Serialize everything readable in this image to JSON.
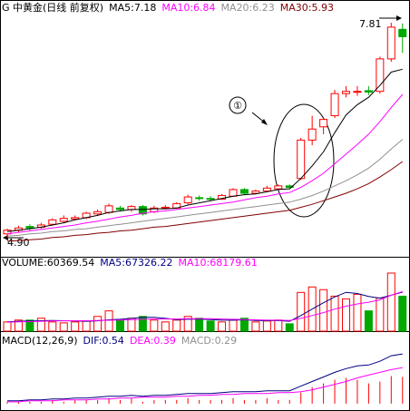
{
  "chart_data": [
    {
      "type": "candlestick",
      "title": "G 中黄金(日线 前复权)",
      "up_color": "#ff0000",
      "down_color": "#00a800",
      "open": [
        4.95,
        5.0,
        5.05,
        5.04,
        5.08,
        5.12,
        5.15,
        5.17,
        5.22,
        5.24,
        5.3,
        5.28,
        5.32,
        5.25,
        5.3,
        5.3,
        5.37,
        5.44,
        5.43,
        5.42,
        5.46,
        5.55,
        5.5,
        5.53,
        5.56,
        5.6,
        5.7,
        6.22,
        6.4,
        6.55,
        6.85,
        6.87,
        6.89,
        6.88,
        7.32,
        7.72
      ],
      "high": [
        5.02,
        5.06,
        5.08,
        5.1,
        5.16,
        5.2,
        5.2,
        5.25,
        5.28,
        5.36,
        5.33,
        5.34,
        5.34,
        5.33,
        5.34,
        5.38,
        5.48,
        5.47,
        5.46,
        5.49,
        5.57,
        5.57,
        5.55,
        5.6,
        5.62,
        5.62,
        6.25,
        6.55,
        6.52,
        6.9,
        6.95,
        6.95,
        6.95,
        7.35,
        7.81,
        7.8
      ],
      "low": [
        4.9,
        4.97,
        5.0,
        5.02,
        5.06,
        5.1,
        5.13,
        5.15,
        5.2,
        5.22,
        5.26,
        5.25,
        5.2,
        5.23,
        5.28,
        5.29,
        5.35,
        5.4,
        5.4,
        5.41,
        5.45,
        5.48,
        5.49,
        5.52,
        5.54,
        5.56,
        5.68,
        6.15,
        6.3,
        6.52,
        6.8,
        6.82,
        6.83,
        6.85,
        7.28,
        7.4
      ],
      "close": [
        5.0,
        5.03,
        5.03,
        5.07,
        5.14,
        5.16,
        5.17,
        5.23,
        5.25,
        5.33,
        5.28,
        5.32,
        5.22,
        5.3,
        5.31,
        5.36,
        5.45,
        5.43,
        5.42,
        5.47,
        5.55,
        5.5,
        5.53,
        5.57,
        5.6,
        5.58,
        6.22,
        6.37,
        6.5,
        6.85,
        6.88,
        6.88,
        6.87,
        7.32,
        7.75,
        7.62
      ],
      "series": [
        {
          "name": "MA5:7.18",
          "color": "#000000",
          "values": [
            4.98,
            5.0,
            5.02,
            5.04,
            5.07,
            5.1,
            5.14,
            5.17,
            5.2,
            5.24,
            5.26,
            5.28,
            5.28,
            5.29,
            5.29,
            5.3,
            5.34,
            5.37,
            5.4,
            5.43,
            5.46,
            5.48,
            5.49,
            5.52,
            5.55,
            5.56,
            5.7,
            5.87,
            6.06,
            6.32,
            6.56,
            6.7,
            6.8,
            6.96,
            7.14,
            7.18
          ]
        },
        {
          "name": "MA10:6.84",
          "color": "#ff00ff",
          "values": [
            4.95,
            4.97,
            4.99,
            5.01,
            5.03,
            5.05,
            5.07,
            5.1,
            5.12,
            5.15,
            5.18,
            5.2,
            5.23,
            5.25,
            5.26,
            5.28,
            5.3,
            5.32,
            5.34,
            5.36,
            5.38,
            5.41,
            5.44,
            5.46,
            5.49,
            5.51,
            5.58,
            5.67,
            5.77,
            5.9,
            6.03,
            6.16,
            6.3,
            6.47,
            6.66,
            6.84
          ]
        },
        {
          "name": "MA20:6.23",
          "color": "#909090",
          "values": [
            4.92,
            4.93,
            4.95,
            4.96,
            4.98,
            4.99,
            5.01,
            5.02,
            5.04,
            5.06,
            5.08,
            5.1,
            5.12,
            5.14,
            5.16,
            5.18,
            5.2,
            5.22,
            5.24,
            5.26,
            5.28,
            5.3,
            5.32,
            5.34,
            5.36,
            5.38,
            5.42,
            5.47,
            5.53,
            5.6,
            5.67,
            5.75,
            5.84,
            5.96,
            6.1,
            6.23
          ]
        },
        {
          "name": "MA30:5.93",
          "color": "#800000",
          "values": [
            4.85,
            4.86,
            4.87,
            4.88,
            4.9,
            4.91,
            4.93,
            4.94,
            4.96,
            4.97,
            4.99,
            5.0,
            5.02,
            5.04,
            5.05,
            5.07,
            5.09,
            5.11,
            5.13,
            5.15,
            5.17,
            5.19,
            5.21,
            5.23,
            5.25,
            5.27,
            5.31,
            5.35,
            5.4,
            5.45,
            5.5,
            5.56,
            5.63,
            5.72,
            5.82,
            5.93
          ]
        }
      ],
      "ylim": [
        4.64,
        7.97
      ],
      "annotations": [
        {
          "text": "7.81"
        },
        {
          "text": "4.90"
        },
        {
          "text": "①"
        }
      ]
    },
    {
      "type": "volume",
      "title": "VOLUME:60369.54",
      "values": [
        15900,
        19100,
        19100,
        22300,
        15900,
        14300,
        15900,
        17500,
        25400,
        35000,
        19100,
        22300,
        25400,
        19100,
        15900,
        19100,
        25400,
        22300,
        17500,
        15900,
        19100,
        22300,
        15900,
        17500,
        19100,
        12700,
        66800,
        76300,
        71600,
        60400,
        55700,
        63600,
        35000,
        57200,
        100200,
        60369.54
      ],
      "series": [
        {
          "name": "MA5:67326.22",
          "color": "#000080",
          "values": [
            16000,
            17000,
            17500,
            18000,
            18500,
            18000,
            17500,
            17000,
            17800,
            19500,
            20500,
            22000,
            24000,
            24000,
            22000,
            20000,
            20500,
            21000,
            20000,
            19000,
            19000,
            19500,
            18500,
            18000,
            18500,
            17000,
            27000,
            38000,
            49000,
            59000,
            67000,
            65000,
            60000,
            57000,
            62000,
            67326.22
          ]
        },
        {
          "name": "MA10:68179.61",
          "color": "#ff00ff",
          "values": [
            15500,
            16000,
            16500,
            17000,
            17500,
            17800,
            18000,
            18000,
            18300,
            18800,
            19200,
            19800,
            20500,
            21000,
            21000,
            21000,
            21500,
            21500,
            21500,
            21000,
            20500,
            20000,
            19500,
            19000,
            19000,
            18500,
            22000,
            27000,
            32000,
            38000,
            43000,
            47000,
            50000,
            54000,
            62000,
            68179.61
          ]
        }
      ],
      "ylim": [
        0,
        108000
      ]
    },
    {
      "type": "macd",
      "title": "MACD(12,26,9)",
      "color": "#ff0000",
      "values": [
        0.02,
        0.02,
        0.02,
        0.02,
        0.04,
        0.02,
        0.04,
        0.04,
        0.04,
        0.06,
        0.04,
        0.06,
        0.02,
        0.04,
        0.04,
        0.04,
        0.06,
        0.04,
        0.04,
        0.04,
        0.06,
        0.04,
        0.04,
        0.06,
        0.04,
        0.04,
        0.12,
        0.18,
        0.22,
        0.26,
        0.28,
        0.26,
        0.22,
        0.24,
        0.3,
        0.29
      ],
      "value_label": "MACD:0.29",
      "series": [
        {
          "name": "DIF:0.54",
          "color": "#000080",
          "values": [
            0.03,
            0.03,
            0.04,
            0.04,
            0.05,
            0.05,
            0.06,
            0.06,
            0.07,
            0.08,
            0.08,
            0.09,
            0.08,
            0.09,
            0.09,
            0.1,
            0.11,
            0.11,
            0.11,
            0.12,
            0.13,
            0.13,
            0.13,
            0.14,
            0.14,
            0.14,
            0.19,
            0.24,
            0.29,
            0.34,
            0.38,
            0.41,
            0.42,
            0.46,
            0.52,
            0.54
          ]
        },
        {
          "name": "DEA:0.39",
          "color": "#ff00ff",
          "values": [
            0.02,
            0.02,
            0.03,
            0.03,
            0.03,
            0.04,
            0.04,
            0.04,
            0.05,
            0.05,
            0.06,
            0.06,
            0.07,
            0.07,
            0.07,
            0.08,
            0.08,
            0.09,
            0.09,
            0.1,
            0.1,
            0.11,
            0.11,
            0.11,
            0.12,
            0.12,
            0.13,
            0.15,
            0.18,
            0.21,
            0.24,
            0.28,
            0.31,
            0.34,
            0.37,
            0.39
          ]
        }
      ],
      "ylim": [
        -0.08,
        0.62
      ]
    }
  ]
}
